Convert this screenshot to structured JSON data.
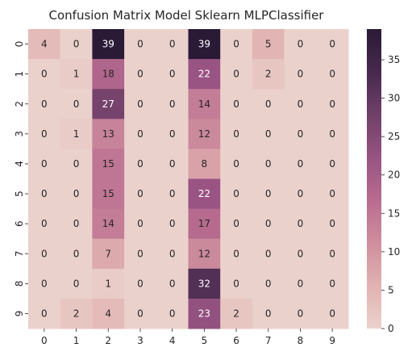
{
  "chart_data": {
    "type": "heatmap",
    "title": "Confusion Matrix Model Sklearn MLPClassifier",
    "x_labels": [
      "0",
      "1",
      "2",
      "3",
      "4",
      "5",
      "6",
      "7",
      "8",
      "9"
    ],
    "y_labels": [
      "0",
      "1",
      "2",
      "3",
      "4",
      "5",
      "6",
      "7",
      "8",
      "9"
    ],
    "values": [
      [
        4,
        0,
        39,
        0,
        0,
        39,
        0,
        5,
        0,
        0
      ],
      [
        0,
        1,
        18,
        0,
        0,
        22,
        0,
        2,
        0,
        0
      ],
      [
        0,
        0,
        27,
        0,
        0,
        14,
        0,
        0,
        0,
        0
      ],
      [
        0,
        1,
        13,
        0,
        0,
        12,
        0,
        0,
        0,
        0
      ],
      [
        0,
        0,
        15,
        0,
        0,
        8,
        0,
        0,
        0,
        0
      ],
      [
        0,
        0,
        15,
        0,
        0,
        22,
        0,
        0,
        0,
        0
      ],
      [
        0,
        0,
        14,
        0,
        0,
        17,
        0,
        0,
        0,
        0
      ],
      [
        0,
        0,
        7,
        0,
        0,
        12,
        0,
        0,
        0,
        0
      ],
      [
        0,
        0,
        1,
        0,
        0,
        32,
        0,
        0,
        0,
        0
      ],
      [
        0,
        2,
        4,
        0,
        0,
        23,
        2,
        0,
        0,
        0
      ]
    ],
    "value_range": [
      0,
      39
    ],
    "colorbar": {
      "ticks": [
        0,
        5,
        10,
        15,
        20,
        25,
        30,
        35
      ],
      "colors": [
        "#ebd1cc",
        "#e1b2b1",
        "#cf8e9e",
        "#b86c8f",
        "#975382",
        "#704069",
        "#47294d",
        "#2a1a36"
      ]
    },
    "annotation_text_colors": {
      "light_bg": "#262626",
      "dark_bg": "#ffffff"
    }
  }
}
